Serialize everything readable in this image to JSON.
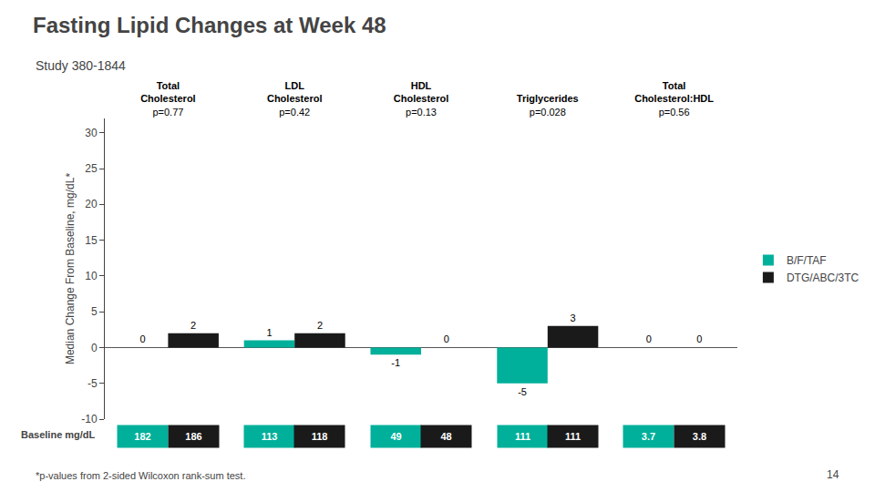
{
  "chart_data": {
    "type": "bar",
    "title": "Fasting Lipid Changes at Week 48",
    "subtitle": "Study 380-1844",
    "ylabel": "Median Change From Baseline, mg/dL*",
    "categories": [
      "Total\nCholesterol",
      "LDL\nCholesterol",
      "HDL\nCholesterol",
      "Triglycerides",
      "Total\nCholesterol:HDL"
    ],
    "pvalues": [
      "p=0.77",
      "p=0.42",
      "p=0.13",
      "p=0.028",
      "p=0.56"
    ],
    "series": [
      {
        "name": "B/F/TAF",
        "color": "#00B09A",
        "values": [
          0,
          1,
          -1,
          -5,
          0
        ],
        "baseline": [
          182,
          113,
          49,
          111,
          3.7
        ]
      },
      {
        "name": "DTG/ABC/3TC",
        "color": "#1A1A1A",
        "values": [
          2,
          2,
          0,
          3,
          0
        ],
        "baseline": [
          186,
          118,
          48,
          111,
          3.8
        ]
      }
    ],
    "baseline_label": "Baseline mg/dL",
    "ylim": [
      -10,
      32
    ],
    "yticks": [
      -10,
      -5,
      0,
      5,
      10,
      15,
      20,
      25,
      30
    ],
    "grid": false,
    "legend": "right",
    "data_labels": true,
    "annotations": [
      "*p-values from 2-sided Wilcoxon rank-sum test.",
      "14"
    ]
  }
}
